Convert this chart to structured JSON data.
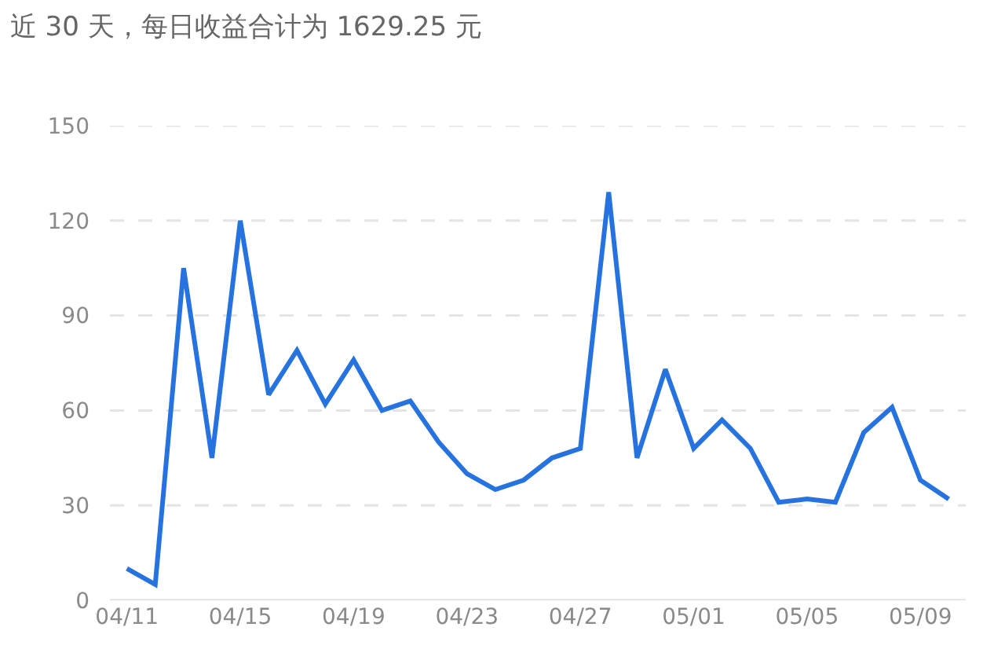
{
  "chart_data": {
    "type": "line",
    "title": "近 30 天，每日收益合计为 1629.25 元",
    "categories": [
      "04/11",
      null,
      null,
      null,
      "04/15",
      null,
      null,
      null,
      "04/19",
      null,
      null,
      null,
      "04/23",
      null,
      null,
      null,
      "04/27",
      null,
      null,
      null,
      "05/01",
      null,
      null,
      null,
      "05/05",
      null,
      null,
      null,
      "05/09",
      null
    ],
    "series": [
      {
        "color": "#2673e0",
        "values": [
          10,
          5,
          105,
          45,
          120,
          65,
          79,
          62,
          76,
          60,
          63,
          50,
          40,
          35,
          38,
          45,
          48,
          129,
          45,
          73,
          48,
          57,
          48,
          31,
          32,
          31,
          53,
          61,
          38,
          32
        ]
      }
    ],
    "ylim": [
      0,
      150
    ],
    "yticks": [
      0,
      30,
      60,
      90,
      120,
      150
    ],
    "grid": "y",
    "marker": "none",
    "line_style": "solid"
  }
}
